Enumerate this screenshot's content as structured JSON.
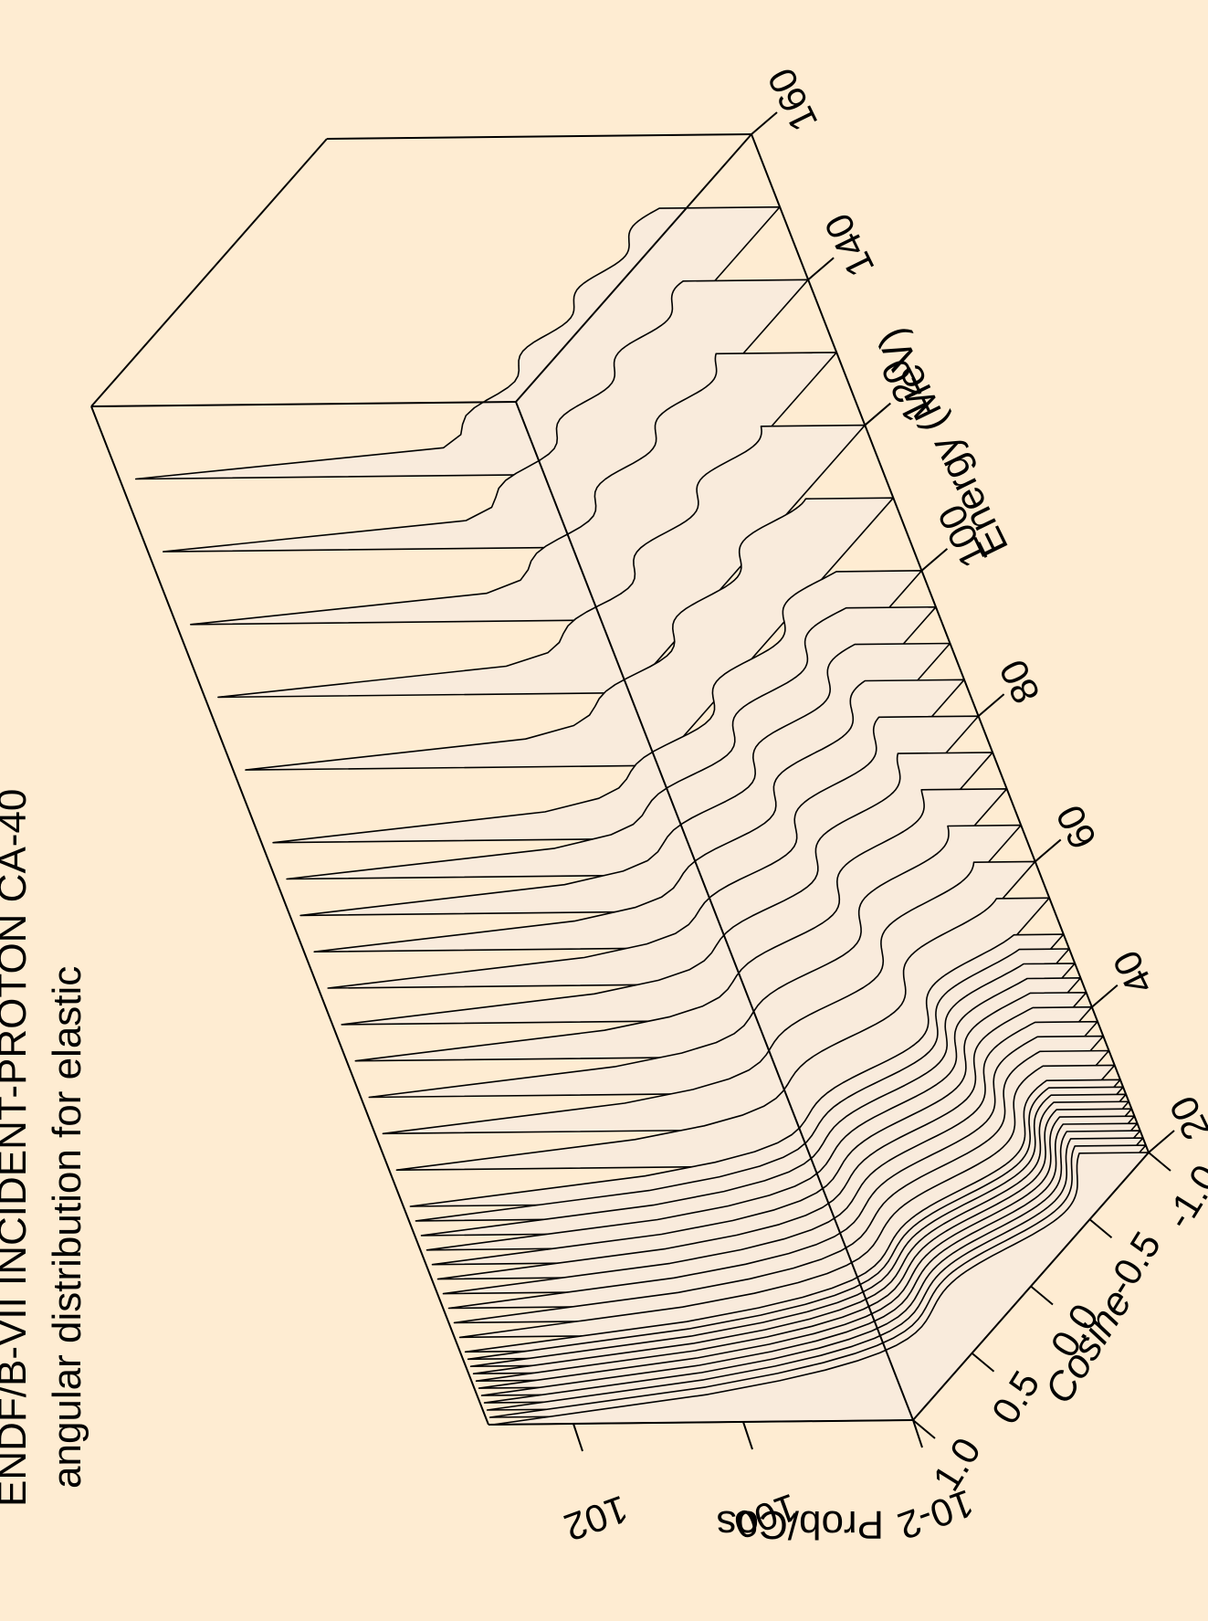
{
  "chart_data": {
    "type": "surface-3d",
    "title_lines": [
      "ENDF/B-VII INCIDENT-PROTON CA-40",
      "angular distribution for elastic"
    ],
    "energy_axis": {
      "label": "Energy (MeV)",
      "ticks": [
        "20",
        "40",
        "60",
        "80",
        "100",
        "120",
        "140",
        "160"
      ],
      "range": [
        20,
        160
      ]
    },
    "cosine_axis": {
      "label": "Cosine",
      "ticks": [
        "1.0",
        "0.5",
        "0.0",
        "-0.5",
        "-1.0"
      ],
      "range": [
        1.0,
        -1.0
      ]
    },
    "prob_axis": {
      "label": "Prob/Cos",
      "scale": "log",
      "ticks": [
        "10-2",
        "100",
        "102"
      ],
      "range": [
        0.01,
        1000
      ]
    },
    "energies": [
      20,
      21,
      22,
      23,
      24,
      25,
      26,
      27,
      28,
      29,
      30,
      32,
      34,
      36,
      38,
      40,
      42,
      44,
      46,
      48,
      50,
      55,
      60,
      65,
      70,
      75,
      80,
      85,
      90,
      95,
      100,
      110,
      120,
      130,
      140,
      150
    ]
  }
}
